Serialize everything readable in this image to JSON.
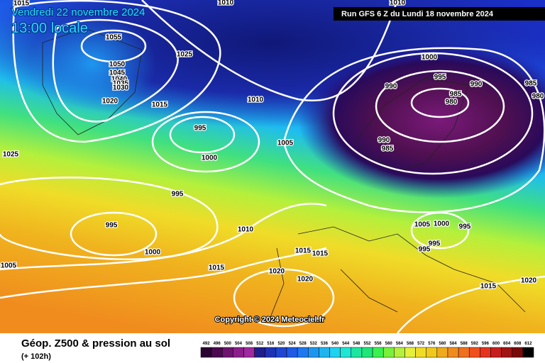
{
  "header": {
    "date": "Vendredi 22 novembre 2024",
    "time": "13:00 locale",
    "run": "Run GFS 6 Z du Lundi 18 novembre 2024"
  },
  "isobar_labels": [
    1015,
    1010,
    1010,
    1055,
    1025,
    1050,
    1045,
    1040,
    1035,
    1030,
    1020,
    1015,
    1010,
    1000,
    995,
    990,
    990,
    985,
    985,
    980,
    980,
    995,
    990,
    985,
    1005,
    1000,
    1025,
    995,
    995,
    1010,
    1005,
    1000,
    995,
    1015,
    1015,
    995,
    995,
    1000,
    1005,
    1015,
    1020,
    1020,
    1015,
    1020
  ],
  "copyright": "Copyright © 2024 Meteociel.fr",
  "footer": {
    "title": "Géop. Z500 & pression au sol",
    "subtitle": "(+ 102h)"
  },
  "colorbar": {
    "labels": [
      492,
      496,
      500,
      504,
      508,
      512,
      516,
      520,
      524,
      528,
      532,
      536,
      540,
      544,
      548,
      552,
      556,
      560,
      564,
      568,
      572,
      576,
      580,
      584,
      588,
      592,
      596,
      600,
      604,
      608,
      612
    ],
    "colors": [
      "#2a0330",
      "#4b0a50",
      "#6e1470",
      "#8c1e8c",
      "#a028a0",
      "#1e1e8c",
      "#1e32b4",
      "#1e46d2",
      "#1e5ae6",
      "#1e78f0",
      "#1e96f0",
      "#1eb4f0",
      "#1ed2f0",
      "#1ee6d2",
      "#1ee6a0",
      "#1ee678",
      "#3cf050",
      "#78f03c",
      "#b4f03c",
      "#e6f03c",
      "#f0dc28",
      "#f0c81e",
      "#f0aa1e",
      "#f08c1e",
      "#f0701e",
      "#f0501e",
      "#e6321e",
      "#c81e1e",
      "#a01414",
      "#780a0a",
      "#000000"
    ]
  }
}
